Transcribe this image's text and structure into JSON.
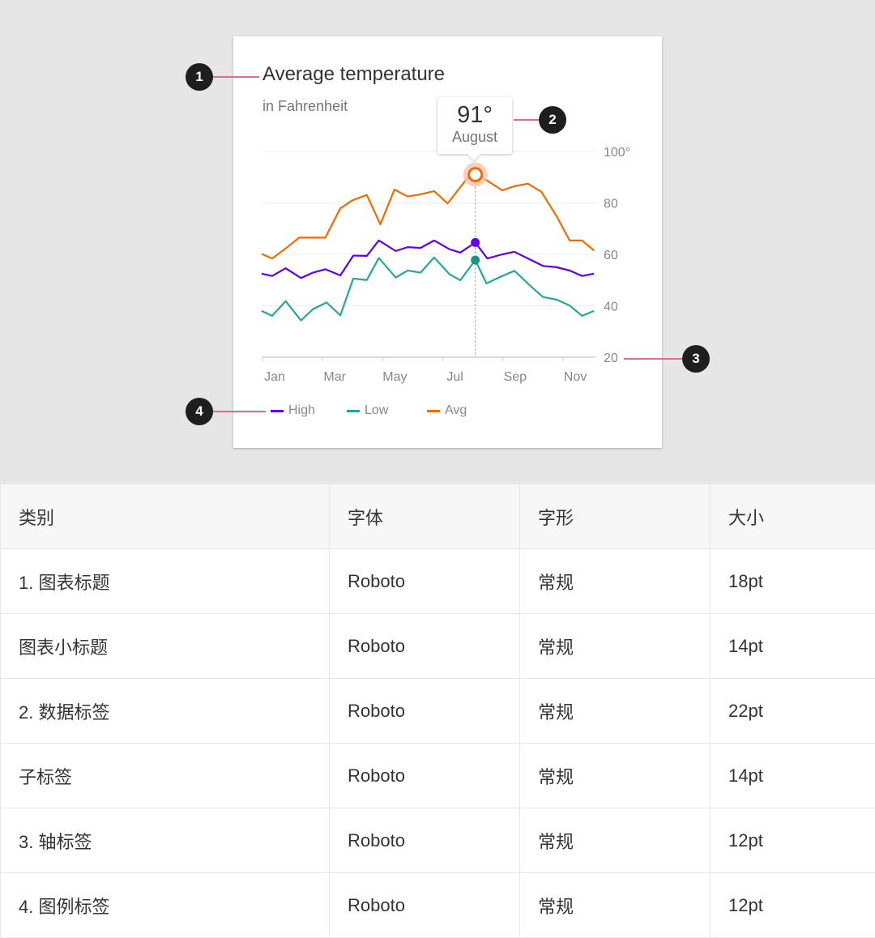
{
  "chart_data": {
    "type": "line",
    "title": "Average temperature",
    "subtitle": "in Fahrenheit",
    "x_tick_labels": [
      "Jan",
      "Mar",
      "May",
      "Jul",
      "Sep",
      "Nov"
    ],
    "x_ticks": [
      1,
      3,
      5,
      7,
      9,
      11
    ],
    "y_tick_labels": [
      "100°",
      "80",
      "60",
      "40",
      "20"
    ],
    "y_ticks": [
      100,
      80,
      60,
      40,
      20
    ],
    "ylim": [
      20,
      100
    ],
    "xlim": [
      1,
      12.05
    ],
    "grid": true,
    "legend_position": "bottom-left",
    "series": [
      {
        "name": "High",
        "color": "#6200ea",
        "points": [
          [
            0.97,
            52.5
          ],
          [
            1.32,
            51.6
          ],
          [
            1.77,
            54.6
          ],
          [
            2.28,
            50.8
          ],
          [
            2.68,
            52.9
          ],
          [
            3.09,
            54.2
          ],
          [
            3.59,
            51.8
          ],
          [
            4.02,
            59.5
          ],
          [
            4.47,
            59.4
          ],
          [
            4.87,
            65.4
          ],
          [
            5.43,
            61.3
          ],
          [
            5.83,
            62.8
          ],
          [
            6.26,
            62.5
          ],
          [
            6.71,
            65.4
          ],
          [
            7.22,
            62
          ],
          [
            7.58,
            60.7
          ],
          [
            8.08,
            64.6
          ],
          [
            8.48,
            58.4
          ],
          [
            8.98,
            60
          ],
          [
            9.38,
            61
          ],
          [
            9.88,
            58.1
          ],
          [
            10.33,
            55.5
          ],
          [
            10.78,
            55
          ],
          [
            11.22,
            53.7
          ],
          [
            11.63,
            51.6
          ],
          [
            12.03,
            52.5
          ]
        ]
      },
      {
        "name": "Low",
        "color": "#26a69a",
        "points": [
          [
            0.97,
            38
          ],
          [
            1.32,
            36.1
          ],
          [
            1.77,
            41.8
          ],
          [
            2.28,
            34.3
          ],
          [
            2.68,
            38.7
          ],
          [
            3.13,
            41.3
          ],
          [
            3.59,
            36.3
          ],
          [
            4.02,
            50.6
          ],
          [
            4.47,
            50
          ],
          [
            4.87,
            58.6
          ],
          [
            5.43,
            51
          ],
          [
            5.83,
            53.7
          ],
          [
            6.26,
            52.9
          ],
          [
            6.71,
            58.8
          ],
          [
            7.22,
            52.3
          ],
          [
            7.58,
            49.9
          ],
          [
            8.08,
            57.8
          ],
          [
            8.45,
            48.7
          ],
          [
            8.98,
            51.6
          ],
          [
            9.38,
            53.6
          ],
          [
            9.88,
            48.1
          ],
          [
            10.33,
            43.4
          ],
          [
            10.78,
            42.4
          ],
          [
            11.22,
            40.1
          ],
          [
            11.63,
            36.1
          ],
          [
            12.03,
            38
          ]
        ]
      },
      {
        "name": "Avg",
        "color": "#ef6c00",
        "points": [
          [
            0.97,
            60.2
          ],
          [
            1.32,
            58.4
          ],
          [
            1.77,
            62.3
          ],
          [
            2.22,
            66.5
          ],
          [
            3.09,
            66.5
          ],
          [
            3.59,
            77.9
          ],
          [
            3.99,
            81
          ],
          [
            4.47,
            83.1
          ],
          [
            4.92,
            71.7
          ],
          [
            5.39,
            85.2
          ],
          [
            5.83,
            82.5
          ],
          [
            6.24,
            83.3
          ],
          [
            6.71,
            84.6
          ],
          [
            7.16,
            79.8
          ],
          [
            7.81,
            89.6
          ],
          [
            8.08,
            91
          ],
          [
            8.35,
            89.6
          ],
          [
            8.98,
            84.9
          ],
          [
            9.38,
            86.5
          ],
          [
            9.83,
            87.5
          ],
          [
            10.28,
            84.3
          ],
          [
            10.78,
            74.9
          ],
          [
            11.22,
            65.4
          ],
          [
            11.63,
            65.4
          ],
          [
            12.03,
            61.5
          ]
        ]
      }
    ],
    "highlight": {
      "x": 8.08,
      "value_label": "91°",
      "month_label": "August",
      "high": 64.6,
      "low": 57.8,
      "avg": 91
    }
  },
  "callouts": [
    "1",
    "2",
    "3",
    "4"
  ],
  "callout_color": "#e26a8a",
  "table": {
    "headers": [
      "类别",
      "字体",
      "字形",
      "大小"
    ],
    "rows": [
      [
        "1. 图表标题",
        "Roboto",
        "常规",
        "18pt"
      ],
      [
        "图表小标题",
        "Roboto",
        "常规",
        "14pt"
      ],
      [
        "2. 数据标签",
        "Roboto",
        "常规",
        "22pt"
      ],
      [
        "子标签",
        "Roboto",
        "常规",
        "14pt"
      ],
      [
        "3. 轴标签",
        "Roboto",
        "常规",
        "12pt"
      ],
      [
        "4. 图例标签",
        "Roboto",
        "常规",
        "12pt"
      ]
    ]
  }
}
